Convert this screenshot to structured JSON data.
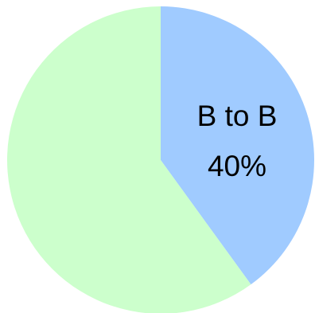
{
  "chart_data": {
    "type": "pie",
    "slices": [
      {
        "label": "B to B",
        "value": 40,
        "value_label": "40%",
        "color": "#a0cbff",
        "show_label": true
      },
      {
        "label": "",
        "value": 60,
        "value_label": "",
        "color": "#ccffcc",
        "show_label": false
      }
    ],
    "start_angle_deg": 0,
    "direction": "clockwise"
  }
}
